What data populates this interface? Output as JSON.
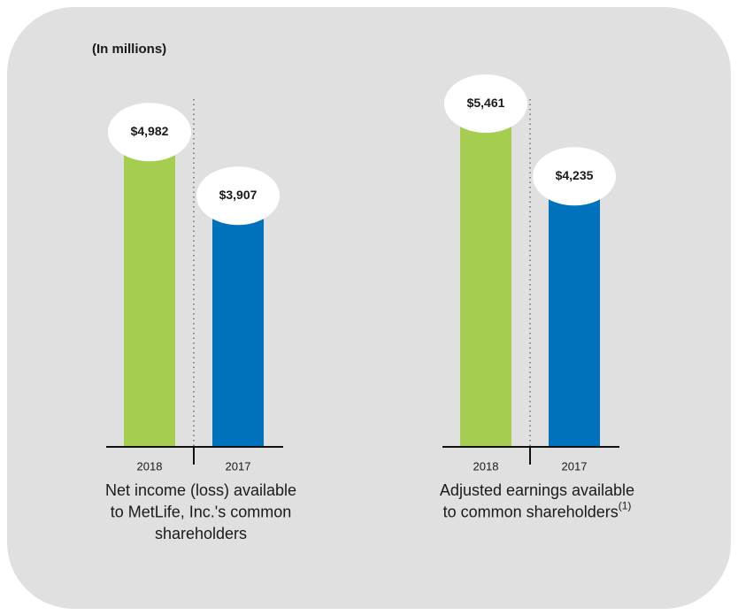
{
  "note": "(In millions)",
  "chart_data": [
    {
      "type": "bar",
      "title": [
        "Net income (loss) available",
        "to MetLife, Inc.'s common",
        "shareholders"
      ],
      "categories": [
        "2018",
        "2017"
      ],
      "values": [
        4982,
        3907
      ],
      "value_labels": [
        "$4,982",
        "$3,907"
      ],
      "colors": [
        "#a5cd50",
        "#0071bd"
      ]
    },
    {
      "type": "bar",
      "title": [
        "Adjusted earnings available",
        "to common shareholders"
      ],
      "title_superscript": "(1)",
      "categories": [
        "2018",
        "2017"
      ],
      "values": [
        5461,
        4235
      ],
      "value_labels": [
        "$5,461",
        "$4,235"
      ],
      "colors": [
        "#a5cd50",
        "#0071bd"
      ]
    }
  ]
}
